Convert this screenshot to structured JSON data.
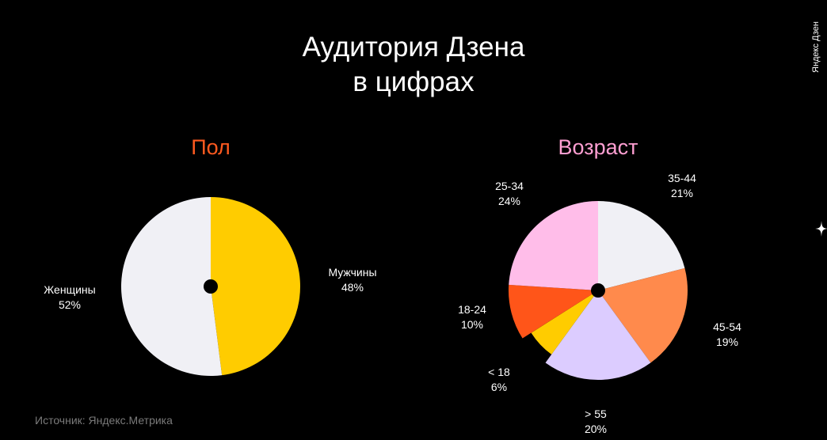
{
  "title": {
    "line1": "Аудитория Дзена",
    "line2": "в цифрах"
  },
  "brand_vertical": "Яндекс Дзен",
  "icons": {
    "star": "four-point-star-icon"
  },
  "source": "Источник: Яндекс.Метрика",
  "colors": {
    "background": "#000000",
    "gender_title": "#ff5a1f",
    "age_title": "#ff9fd2",
    "center_dot": "#000000"
  },
  "chart_data": [
    {
      "type": "pie",
      "title": "Пол",
      "slices": [
        {
          "label": "Мужчины",
          "value": 48,
          "value_label": "48%",
          "color": "#ffcc00"
        },
        {
          "label": "Женщины",
          "value": 52,
          "value_label": "52%",
          "color": "#f0f0f5"
        }
      ]
    },
    {
      "type": "pie",
      "title": "Возраст",
      "slices": [
        {
          "label": "35-44",
          "value": 21,
          "value_label": "21%",
          "color": "#f0f0f5"
        },
        {
          "label": "45-54",
          "value": 19,
          "value_label": "19%",
          "color": "#ff8a4c"
        },
        {
          "label": "> 55",
          "value": 20,
          "value_label": "20%",
          "color": "#dcccff"
        },
        {
          "label": "< 18",
          "value": 6,
          "value_label": "6%",
          "color": "#ffcc00"
        },
        {
          "label": "18-24",
          "value": 10,
          "value_label": "10%",
          "color": "#ff5519"
        },
        {
          "label": "25-34",
          "value": 24,
          "value_label": "24%",
          "color": "#ffbde9"
        }
      ]
    }
  ]
}
